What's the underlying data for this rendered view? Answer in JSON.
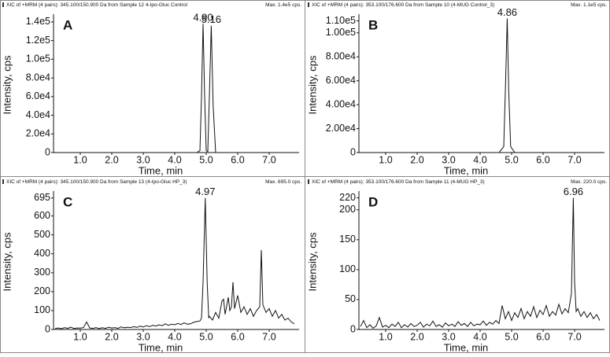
{
  "chart_data": [
    {
      "type": "line",
      "header_left": "XIC of +MRM (4 pairs): 345.100/150.900 Da  from Sample 12  4-Ipo-Gluc Control",
      "header_right": "Max. 1.4e5 cps.",
      "panel_label": "A",
      "x_label": "Time, min",
      "y_label": "Intensity, cps",
      "color": "#111111",
      "xlim": [
        0.15,
        7.95
      ],
      "xticks": [
        {
          "value": 1,
          "label": "1.0"
        },
        {
          "value": 2,
          "label": "2.0"
        },
        {
          "value": 3,
          "label": "3.0"
        },
        {
          "value": 4,
          "label": "4.0"
        },
        {
          "value": 5,
          "label": "5.0"
        },
        {
          "value": 6,
          "label": "6.0"
        },
        {
          "value": 7,
          "label": "7.0"
        }
      ],
      "ylim": [
        0,
        145000
      ],
      "yticks": [
        0,
        {
          "value": 20000,
          "label": "2.0e4"
        },
        {
          "value": 40000,
          "label": "4.0e4"
        },
        {
          "value": 60000,
          "label": "6.0e4"
        },
        {
          "value": 80000,
          "label": "8.0e4"
        },
        {
          "value": 100000,
          "label": "1.0e5"
        },
        {
          "value": 120000,
          "label": "1.2e5"
        },
        {
          "value": 140000,
          "label": "1.4e5"
        }
      ],
      "x": [
        0.15,
        4.7,
        4.8,
        4.85,
        4.9,
        4.95,
        5.0,
        5.05,
        5.1,
        5.16,
        5.22,
        5.3,
        5.5,
        7.95
      ],
      "values": [
        0,
        0,
        2000,
        60000,
        138000,
        60000,
        2000,
        1000,
        60000,
        136000,
        50000,
        0,
        0,
        0
      ],
      "annotations": [
        {
          "text": "4.90",
          "x": 4.9,
          "y": 138000
        },
        {
          "text": "5.16",
          "x": 5.16,
          "y": 136000
        }
      ]
    },
    {
      "type": "line",
      "header_left": "XIC of +MRM (4 pairs): 353.100/176.600 Da  from Sample 10 (4-MUG Control_3)",
      "header_right": "Max. 1.1e5 cps.",
      "panel_label": "B",
      "x_label": "Time, min",
      "y_label": "Intensity, cps",
      "color": "#111111",
      "xlim": [
        0.15,
        7.95
      ],
      "xticks": [
        {
          "value": 1,
          "label": "1.0"
        },
        {
          "value": 2,
          "label": "2.0"
        },
        {
          "value": 3,
          "label": "3.0"
        },
        {
          "value": 4,
          "label": "4.0"
        },
        {
          "value": 5,
          "label": "5.0"
        },
        {
          "value": 6,
          "label": "6.0"
        },
        {
          "value": 7,
          "label": "7.0"
        }
      ],
      "ylim": [
        0,
        113000
      ],
      "yticks": [
        0,
        {
          "value": 20000,
          "label": "2.00e4"
        },
        {
          "value": 40000,
          "label": "4.00e4"
        },
        {
          "value": 60000,
          "label": "6.00e4"
        },
        {
          "value": 80000,
          "label": "8.00e4"
        },
        {
          "value": 100000,
          "label": "1.00e5"
        },
        {
          "value": 110000,
          "label": "1.10e5"
        }
      ],
      "x": [
        0.15,
        4.6,
        4.75,
        4.81,
        4.86,
        4.91,
        4.97,
        5.1,
        7.95
      ],
      "values": [
        0,
        0,
        5000,
        60000,
        112000,
        50000,
        5000,
        0,
        0
      ],
      "annotations": [
        {
          "text": "4.86",
          "x": 4.86,
          "y": 112000
        }
      ]
    },
    {
      "type": "line",
      "header_left": "XIC of +MRM (4 pairs): 345.100/150.900 Da  from Sample 13 (4-Ipo-Gluc HP_3)",
      "header_right": "Max. 695.0 cps.",
      "panel_label": "C",
      "x_label": "Time, min",
      "y_label": "Intensity, cps",
      "color": "#111111",
      "xlim": [
        0.15,
        7.95
      ],
      "xticks": [
        {
          "value": 1,
          "label": "1.0"
        },
        {
          "value": 2,
          "label": "2.0"
        },
        {
          "value": 3,
          "label": "3.0"
        },
        {
          "value": 4,
          "label": "4.0"
        },
        {
          "value": 5,
          "label": "5.0"
        },
        {
          "value": 6,
          "label": "6.0"
        },
        {
          "value": 7,
          "label": "7.0"
        }
      ],
      "ylim": [
        0,
        715
      ],
      "yticks": [
        0,
        100,
        200,
        300,
        400,
        500,
        600,
        695
      ],
      "x": [
        0.2,
        0.3,
        0.4,
        0.5,
        0.6,
        0.7,
        0.8,
        0.9,
        1.0,
        1.1,
        1.2,
        1.3,
        1.4,
        1.5,
        1.6,
        1.7,
        1.8,
        1.9,
        2.0,
        2.1,
        2.2,
        2.3,
        2.4,
        2.5,
        2.6,
        2.7,
        2.8,
        2.9,
        3.0,
        3.1,
        3.2,
        3.3,
        3.4,
        3.5,
        3.6,
        3.7,
        3.8,
        3.9,
        4.0,
        4.1,
        4.2,
        4.3,
        4.4,
        4.5,
        4.6,
        4.7,
        4.8,
        4.85,
        4.9,
        4.97,
        5.03,
        5.08,
        5.1,
        5.2,
        5.3,
        5.4,
        5.5,
        5.55,
        5.6,
        5.7,
        5.75,
        5.8,
        5.85,
        5.9,
        6.0,
        6.1,
        6.2,
        6.3,
        6.4,
        6.5,
        6.6,
        6.7,
        6.75,
        6.8,
        6.9,
        7.0,
        7.1,
        7.2,
        7.3,
        7.4,
        7.5,
        7.6,
        7.7,
        7.8
      ],
      "values": [
        5,
        8,
        4,
        10,
        6,
        12,
        5,
        8,
        7,
        10,
        40,
        8,
        6,
        10,
        5,
        9,
        6,
        12,
        8,
        10,
        6,
        14,
        9,
        12,
        10,
        15,
        11,
        18,
        13,
        20,
        15,
        22,
        18,
        25,
        20,
        30,
        22,
        28,
        25,
        32,
        26,
        35,
        28,
        30,
        38,
        42,
        45,
        60,
        250,
        695,
        250,
        60,
        70,
        50,
        90,
        60,
        150,
        160,
        80,
        170,
        100,
        120,
        250,
        110,
        180,
        90,
        120,
        80,
        110,
        70,
        100,
        120,
        420,
        130,
        90,
        110,
        70,
        100,
        60,
        80,
        50,
        60,
        40,
        30
      ],
      "annotations": [
        {
          "text": "4.97",
          "x": 4.97,
          "y": 695
        }
      ]
    },
    {
      "type": "line",
      "header_left": "XIC of +MRM (4 pairs): 353.100/176.600 Da  from Sample 11 (4-MUG HP_3)",
      "header_right": "Max. 220.0 cps.",
      "panel_label": "D",
      "x_label": "Time, min",
      "y_label": "Intensity, cps",
      "color": "#111111",
      "xlim": [
        0.15,
        7.95
      ],
      "xticks": [
        {
          "value": 1,
          "label": "1.0"
        },
        {
          "value": 2,
          "label": "2.0"
        },
        {
          "value": 3,
          "label": "3.0"
        },
        {
          "value": 4,
          "label": "4.0"
        },
        {
          "value": 5,
          "label": "5.0"
        },
        {
          "value": 6,
          "label": "6.0"
        },
        {
          "value": 7,
          "label": "7.0"
        }
      ],
      "ylim": [
        0,
        226
      ],
      "yticks": [
        0,
        50,
        100,
        150,
        200,
        220
      ],
      "x": [
        0.2,
        0.3,
        0.4,
        0.5,
        0.6,
        0.7,
        0.8,
        0.9,
        1.0,
        1.1,
        1.2,
        1.3,
        1.4,
        1.5,
        1.6,
        1.7,
        1.8,
        1.9,
        2.0,
        2.1,
        2.2,
        2.3,
        2.4,
        2.5,
        2.6,
        2.7,
        2.8,
        2.9,
        3.0,
        3.1,
        3.2,
        3.3,
        3.4,
        3.5,
        3.6,
        3.7,
        3.8,
        3.9,
        4.0,
        4.1,
        4.2,
        4.3,
        4.4,
        4.5,
        4.6,
        4.7,
        4.8,
        4.9,
        5.0,
        5.1,
        5.2,
        5.3,
        5.4,
        5.5,
        5.6,
        5.7,
        5.8,
        5.9,
        6.0,
        6.1,
        6.2,
        6.3,
        6.4,
        6.5,
        6.6,
        6.7,
        6.8,
        6.9,
        6.96,
        7.0,
        7.05,
        7.1,
        7.2,
        7.3,
        7.4,
        7.5,
        7.6,
        7.7,
        7.8
      ],
      "values": [
        5,
        15,
        3,
        8,
        2,
        6,
        20,
        4,
        7,
        3,
        9,
        5,
        12,
        3,
        8,
        4,
        10,
        5,
        7,
        12,
        4,
        9,
        6,
        14,
        5,
        8,
        4,
        11,
        6,
        9,
        5,
        13,
        7,
        10,
        5,
        12,
        6,
        9,
        8,
        14,
        7,
        12,
        9,
        15,
        10,
        40,
        18,
        30,
        15,
        28,
        20,
        35,
        18,
        30,
        22,
        38,
        20,
        32,
        25,
        40,
        22,
        30,
        24,
        42,
        26,
        35,
        28,
        60,
        220,
        80,
        30,
        35,
        22,
        30,
        20,
        28,
        18,
        25,
        15
      ],
      "annotations": [
        {
          "text": "6.96",
          "x": 6.96,
          "y": 220
        }
      ]
    }
  ]
}
